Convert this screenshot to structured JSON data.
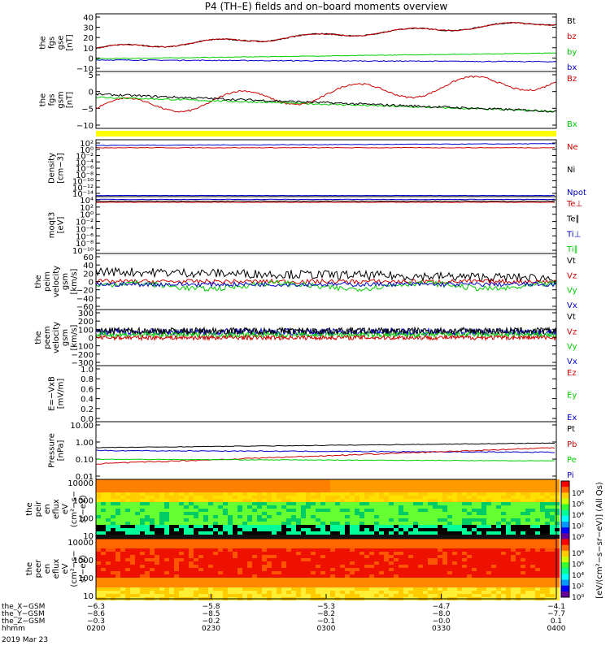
{
  "title": "P4 (TH–E) fields and on–board moments overview",
  "panels": [
    {
      "ylabel": [
        "the",
        "fgs",
        "gse",
        "[nT]"
      ],
      "ticks": [
        "40",
        "30",
        "20",
        "10",
        "0",
        "−10"
      ],
      "legend": [
        {
          "t": "Bt",
          "c": "#000000"
        },
        {
          "t": "bz",
          "c": "#cc0000"
        },
        {
          "t": "by",
          "c": "#00cc00"
        },
        {
          "t": "bx",
          "c": "#0000cc"
        }
      ]
    },
    {
      "ylabel": [
        "the",
        "fgs",
        "gsm",
        "[nT]"
      ],
      "ticks": [
        "5",
        "0",
        "−5",
        "−10"
      ],
      "legend": [
        {
          "t": "Bz",
          "c": "#cc0000"
        },
        {
          "t": "Bx",
          "c": "#00cc00"
        }
      ]
    },
    {
      "ylabel": [
        "Density",
        "[cm−3]"
      ],
      "ticks": [
        "10²",
        "10⁰",
        "10⁻²",
        "10⁻⁴",
        "10⁻⁶",
        "10⁻⁸",
        "10⁻¹⁰",
        "10⁻¹²",
        "10⁻¹⁴"
      ],
      "legend": [
        {
          "t": "Ne",
          "c": "#cc0000"
        },
        {
          "t": "Ni",
          "c": "#000000"
        },
        {
          "t": "Npot",
          "c": "#0000cc"
        }
      ]
    },
    {
      "ylabel": [
        "moqt3",
        "[eV]"
      ],
      "ticks": [
        "10⁴",
        "10²",
        "10⁰",
        "10⁻²",
        "10⁻⁴",
        "10⁻⁶",
        "10⁻⁸",
        "10⁻¹⁰"
      ],
      "legend": [
        {
          "t": "Te⊥",
          "c": "#cc0000"
        },
        {
          "t": "Te∥",
          "c": "#000000"
        },
        {
          "t": "Ti⊥",
          "c": "#0000cc"
        },
        {
          "t": "Ti∥",
          "c": "#00cc00"
        }
      ]
    },
    {
      "ylabel": [
        "the",
        "peim",
        "velocity",
        "gsm",
        "[km/s]"
      ],
      "ticks": [
        "60",
        "40",
        "20",
        "0",
        "−20",
        "−40",
        "−60"
      ],
      "legend": [
        {
          "t": "Vt",
          "c": "#000000"
        },
        {
          "t": "Vz",
          "c": "#cc0000"
        },
        {
          "t": "Vy",
          "c": "#00cc00"
        },
        {
          "t": "Vx",
          "c": "#0000cc"
        }
      ]
    },
    {
      "ylabel": [
        "the",
        "peem",
        "velocity",
        "gsm",
        "[km/s]"
      ],
      "ticks": [
        "300",
        "200",
        "100",
        "0",
        "−100",
        "−200",
        "−300"
      ],
      "legend": [
        {
          "t": "Vt",
          "c": "#000000"
        },
        {
          "t": "Vz",
          "c": "#cc0000"
        },
        {
          "t": "Vy",
          "c": "#00cc00"
        },
        {
          "t": "Vx",
          "c": "#0000cc"
        }
      ]
    },
    {
      "ylabel": [
        "E=−VxB",
        "[mV/m]"
      ],
      "ticks": [
        "1.0",
        "0.8",
        "0.6",
        "0.4",
        "0.2",
        "0.0"
      ],
      "legend": [
        {
          "t": "Ez",
          "c": "#cc0000"
        },
        {
          "t": "Ey",
          "c": "#00cc00"
        },
        {
          "t": "Ex",
          "c": "#0000cc"
        }
      ]
    },
    {
      "ylabel": [
        "Pressure",
        "[nPa]"
      ],
      "ticks": [
        "10.00",
        "1.00",
        "0.10",
        "0.01"
      ],
      "legend": [
        {
          "t": "Pt",
          "c": "#000000"
        },
        {
          "t": "Pb",
          "c": "#cc0000"
        },
        {
          "t": "Pe",
          "c": "#00cc00"
        },
        {
          "t": "Pi",
          "c": "#0000cc"
        }
      ]
    },
    {
      "ylabel": [
        "the",
        "peir",
        "en",
        "eflux",
        "eV",
        "(cm²−s−",
        "sr−eV)"
      ],
      "ticks": [
        "10000",
        "1000",
        "100",
        "10"
      ],
      "legend": []
    },
    {
      "ylabel": [
        "the",
        "peer",
        "en",
        "eflux",
        "eV",
        "(cm²−s−",
        "sr−eV)"
      ],
      "ticks": [
        "10000",
        "1000",
        "100",
        "10"
      ],
      "legend": []
    }
  ],
  "colorbar": {
    "label": "[eV/(cm²−s−sr−eV)] (All Qs)",
    "ticks_top": [
      "10⁸",
      "10⁶",
      "10⁴",
      "10²",
      "10⁰"
    ],
    "ticks_bottom": [
      "10⁸",
      "10⁶",
      "10⁴",
      "10²",
      "10⁰"
    ]
  },
  "xaxis": {
    "rows": [
      {
        "label": "the_X−GSM",
        "vals": [
          "−6.3",
          "−5.8",
          "−5.3",
          "−4.7",
          "−4.1"
        ]
      },
      {
        "label": "the_Y−GSM",
        "vals": [
          "−8.6",
          "−8.5",
          "−8.2",
          "−8.0",
          "−7.7"
        ]
      },
      {
        "label": "the_Z−GSM",
        "vals": [
          "−0.3",
          "−0.2",
          "−0.1",
          "−0.0",
          "0.1"
        ]
      },
      {
        "label": "hhmm",
        "vals": [
          "0200",
          "0230",
          "0300",
          "0330",
          "0400"
        ]
      }
    ],
    "date": "2019 Mar 23"
  }
}
